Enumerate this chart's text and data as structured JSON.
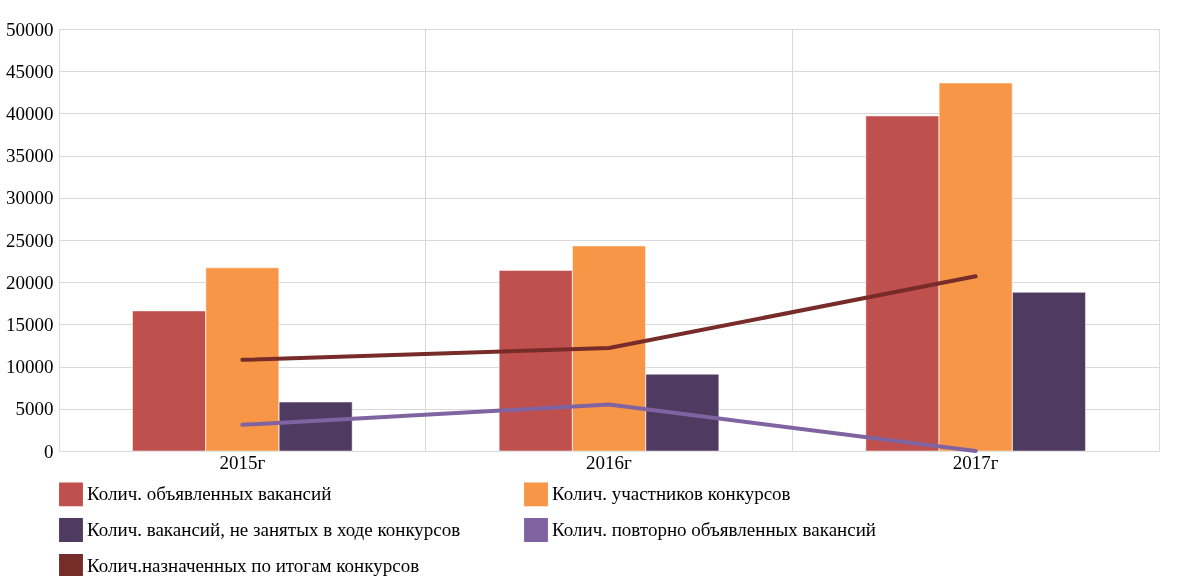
{
  "chart_data": {
    "type": "bar",
    "categories": [
      "2015г",
      "2016г",
      "2017г"
    ],
    "series": [
      {
        "name": "Колич. объявленных вакансий",
        "color": "#c0504d",
        "values": [
          16600,
          21400,
          39700
        ]
      },
      {
        "name": "Колич. участников конкурсов",
        "color": "#f79646",
        "values": [
          21700,
          24300,
          43600
        ]
      },
      {
        "name": "Колич. вакансий, не занятых в ходе конкурсов",
        "color": "#4f3a62",
        "values": [
          5800,
          9100,
          18800
        ]
      },
      {
        "name": "Колич. повторно объявленных вакансий",
        "type": "line",
        "color": "#8064a2",
        "values": [
          3100,
          5500,
          0
        ]
      },
      {
        "name": "Колич.назначенных по итогам конкурсов",
        "type": "line",
        "color": "#772c2a",
        "values": [
          10800,
          12200,
          20700
        ]
      }
    ],
    "ylim": [
      0,
      50000
    ],
    "yticks": [
      0,
      5000,
      10000,
      15000,
      20000,
      25000,
      30000,
      35000,
      40000,
      45000,
      50000
    ],
    "grid": true,
    "legend": "bottom",
    "line_style": "solid",
    "marker": "none"
  }
}
